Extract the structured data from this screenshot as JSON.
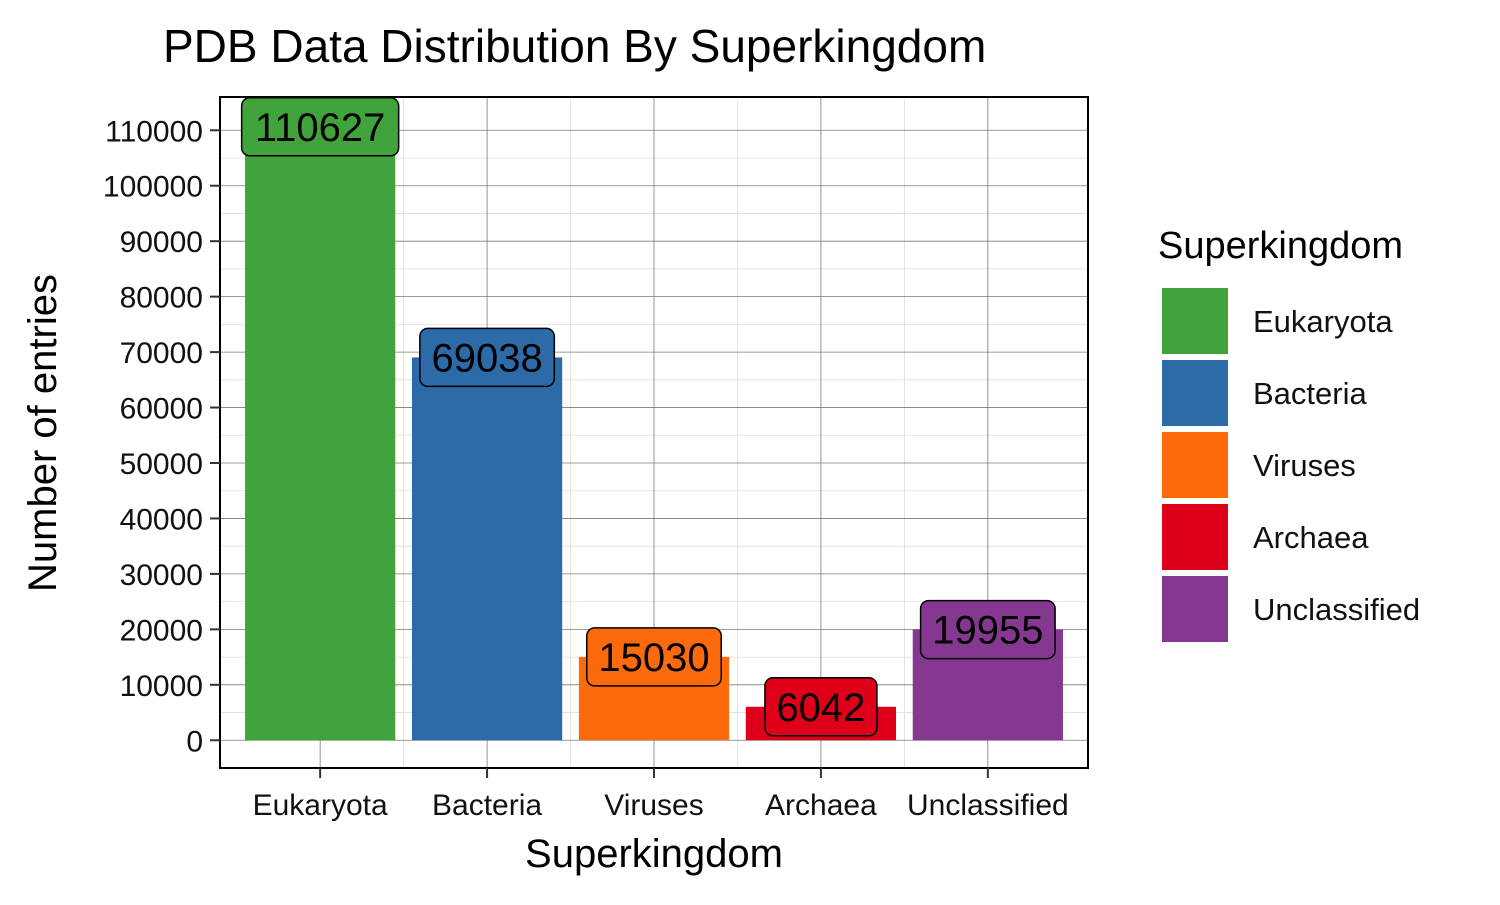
{
  "chart_data": {
    "type": "bar",
    "title": "PDB Data Distribution By Superkingdom",
    "xlabel": "Superkingdom",
    "ylabel": "Number of entries",
    "categories": [
      "Eukaryota",
      "Bacteria",
      "Viruses",
      "Archaea",
      "Unclassified"
    ],
    "values": [
      110627,
      69038,
      15030,
      6042,
      19955
    ],
    "data_labels": [
      "110627",
      "69038",
      "15030",
      "6042",
      "19955"
    ],
    "colors": [
      "#41a33b",
      "#2d6ba8",
      "#fd6a0b",
      "#de0018",
      "#84388f"
    ],
    "ylim": [
      -5000,
      116000
    ],
    "y_ticks": [
      0,
      10000,
      20000,
      30000,
      40000,
      50000,
      60000,
      70000,
      80000,
      90000,
      100000,
      110000
    ],
    "y_tick_labels": [
      "0",
      "10000",
      "20000",
      "30000",
      "40000",
      "50000",
      "60000",
      "70000",
      "80000",
      "90000",
      "100000",
      "110000"
    ],
    "grid": true,
    "legend": {
      "title": "Superkingdom",
      "position": "right",
      "entries": [
        "Eukaryota",
        "Bacteria",
        "Viruses",
        "Archaea",
        "Unclassified"
      ]
    }
  }
}
